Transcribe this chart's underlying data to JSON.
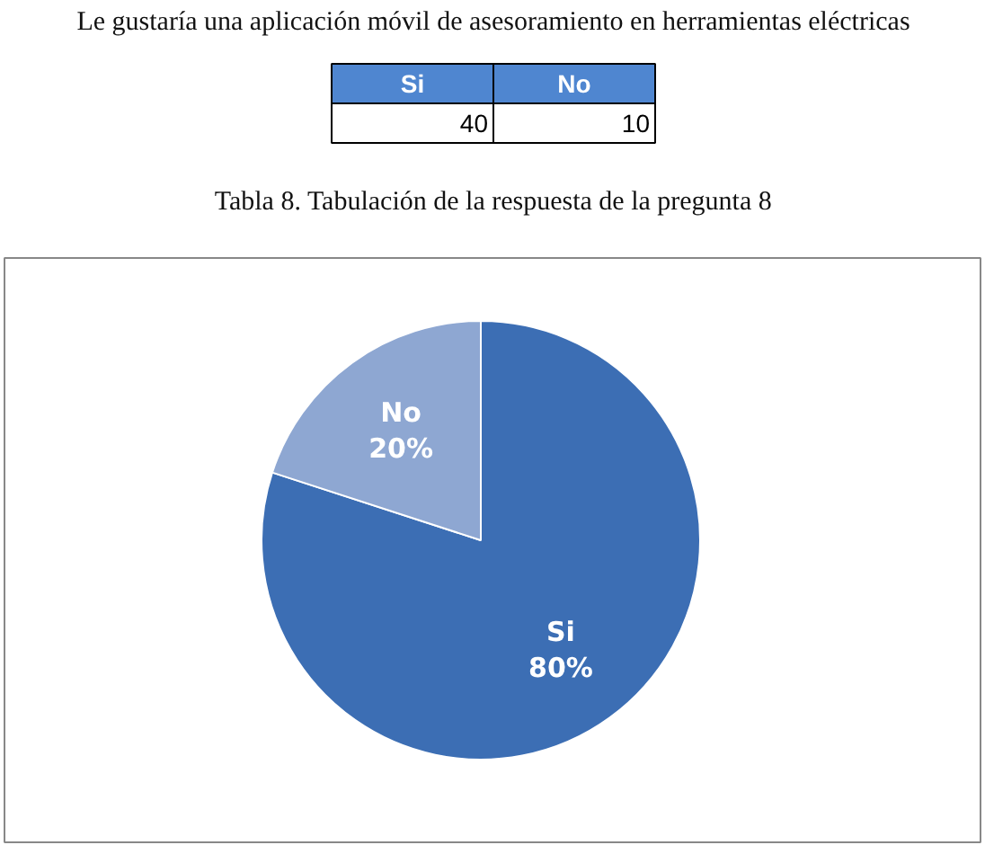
{
  "chart_data": {
    "type": "pie",
    "title": "Le gustaría una aplicación móvil de asesoramiento en herramientas eléctricas",
    "categories": [
      "Si",
      "No"
    ],
    "values": [
      80,
      20
    ],
    "colors": [
      "#3c6eb4",
      "#8ea7d2"
    ],
    "value_labels": [
      "80%",
      "20%"
    ],
    "data_labels": true,
    "annotations": [
      "40",
      "10",
      "Tabla 8. Tabulación de la respuesta de la pregunta 8"
    ]
  }
}
